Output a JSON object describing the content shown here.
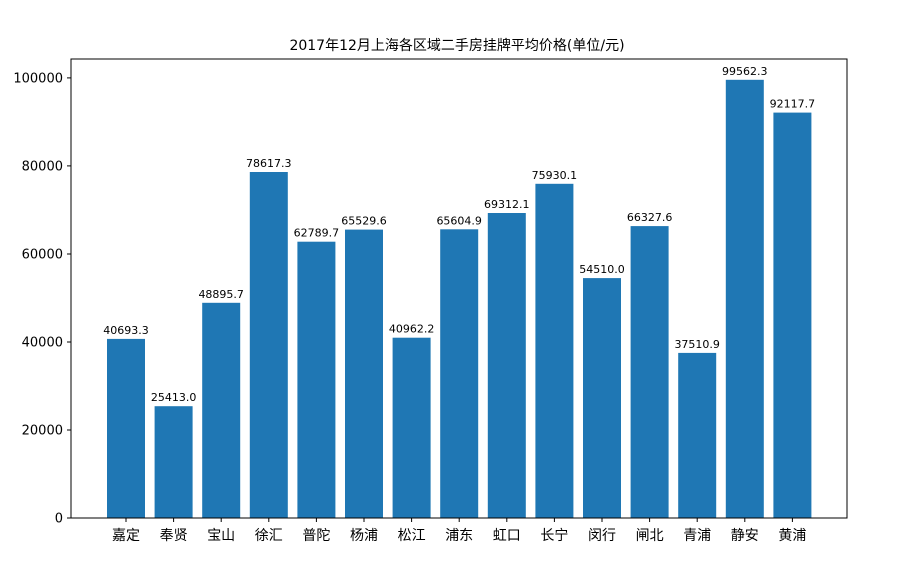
{
  "chart_data": {
    "type": "bar",
    "title": "2017年12月上海各区域二手房挂牌平均价格(单位/元)",
    "xlabel": "",
    "ylabel": "",
    "ylim": [
      0,
      104300
    ],
    "yticks": [
      0,
      20000,
      40000,
      60000,
      80000,
      100000
    ],
    "ytick_labels": [
      "0",
      "20000",
      "40000",
      "60000",
      "80000",
      "100000"
    ],
    "grid": false,
    "bar_color": "#1f77b4",
    "categories": [
      "嘉定",
      "奉贤",
      "宝山",
      "徐汇",
      "普陀",
      "杨浦",
      "松江",
      "浦东",
      "虹口",
      "长宁",
      "闵行",
      "闸北",
      "青浦",
      "静安",
      "黄浦"
    ],
    "values": [
      40693.3,
      25413.0,
      48895.7,
      78617.3,
      62789.7,
      65529.6,
      40962.2,
      65604.9,
      69312.1,
      75930.1,
      54510.0,
      66327.6,
      37510.9,
      99562.3,
      92117.7
    ],
    "value_labels": [
      "40693.3",
      "25413.0",
      "48895.7",
      "78617.3",
      "62789.7",
      "65529.6",
      "40962.2",
      "65604.9",
      "69312.1",
      "75930.1",
      "54510.0",
      "66327.6",
      "37510.9",
      "99562.3",
      "92117.7"
    ]
  }
}
